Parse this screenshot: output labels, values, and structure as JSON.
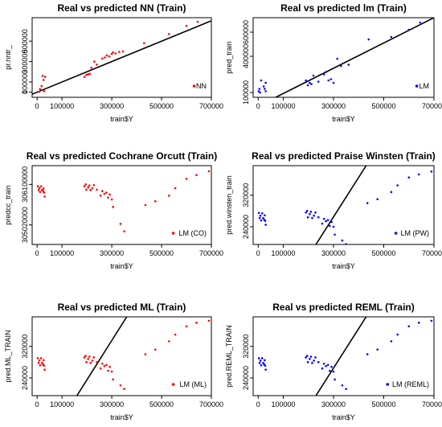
{
  "chart_data": [
    {
      "type": "scatter",
      "title": "Real vs predicted NN (Train)",
      "xlabel": "train$Y",
      "ylabel": "pr.nntr_",
      "xlim": [
        -20000,
        700000
      ],
      "ylim": [
        -50000,
        730000
      ],
      "xticks": [
        0,
        100000,
        300000,
        500000,
        700000
      ],
      "xtick_labels": [
        "0",
        "100000",
        "300000",
        "500000",
        "700000"
      ],
      "yticks": [
        0,
        100000,
        300000,
        500000
      ],
      "ytick_labels": [
        "0",
        "100000",
        "300000",
        "500000"
      ],
      "series": [
        {
          "name": "NN",
          "color": "#ff0000",
          "x": [
            8000,
            12000,
            18000,
            22000,
            26000,
            28000,
            32000,
            190000,
            198000,
            205000,
            212000,
            218000,
            230000,
            240000,
            262000,
            272000,
            280000,
            290000,
            300000,
            305000,
            315000,
            330000,
            345000,
            430000,
            530000,
            600000,
            645000
          ],
          "y": [
            5000,
            30000,
            60000,
            160000,
            120000,
            10000,
            150000,
            150000,
            170000,
            175000,
            180000,
            240000,
            300000,
            270000,
            330000,
            340000,
            360000,
            350000,
            375000,
            390000,
            380000,
            395000,
            400000,
            480000,
            570000,
            650000,
            690000
          ]
        }
      ],
      "line": {
        "x": [
          -20000,
          700000
        ],
        "y": [
          -20000,
          700000
        ]
      }
    },
    {
      "type": "scatter",
      "title": "Real vs predicted lm (Train)",
      "xlabel": "train$Y",
      "ylabel": "pred_train",
      "xlim": [
        -20000,
        700000
      ],
      "ylim": [
        60000,
        720000
      ],
      "xticks": [
        0,
        100000,
        300000,
        500000,
        700000
      ],
      "xtick_labels": [
        "0",
        "100000",
        "300000",
        "500000",
        "700000"
      ],
      "yticks": [
        100000,
        400000,
        600000
      ],
      "ytick_labels": [
        "100000",
        "400000",
        "600000"
      ],
      "series": [
        {
          "name": "LM",
          "color": "#0000ff",
          "x": [
            2000,
            5000,
            8000,
            12000,
            22000,
            26000,
            30000,
            30000,
            190000,
            198000,
            205000,
            212000,
            220000,
            240000,
            262000,
            270000,
            280000,
            290000,
            300000,
            315000,
            330000,
            360000,
            440000,
            530000,
            600000,
            645000
          ],
          "y": [
            110000,
            130000,
            100000,
            200000,
            150000,
            130000,
            110000,
            180000,
            200000,
            160000,
            180000,
            170000,
            240000,
            190000,
            250000,
            270000,
            200000,
            210000,
            180000,
            380000,
            320000,
            330000,
            540000,
            560000,
            620000,
            680000
          ]
        }
      ],
      "line": {
        "x": [
          70000,
          700000
        ],
        "y": [
          60000,
          720000
        ]
      }
    },
    {
      "type": "scatter",
      "title": "Real vs predicted Cochrane Orcutt (Train)",
      "xlabel": "train$Y",
      "ylabel": "predcc_train",
      "xlim": [
        -20000,
        700000
      ],
      "ylim": [
        304500000,
        306600000
      ],
      "xticks": [
        0,
        100000,
        300000,
        500000,
        700000
      ],
      "xtick_labels": [
        "0",
        "100000",
        "300000",
        "500000",
        "700000"
      ],
      "yticks": [
        305020000,
        306100000
      ],
      "ytick_labels": [
        "305020000",
        "306100000"
      ],
      "series": [
        {
          "name": "LM (CO)",
          "color": "#ff0000",
          "x": [
            3000,
            6000,
            9000,
            12000,
            16000,
            20000,
            24000,
            26000,
            28000,
            30000,
            190000,
            195000,
            198000,
            205000,
            210000,
            215000,
            222000,
            228000,
            240000,
            255000,
            262000,
            270000,
            278000,
            285000,
            292000,
            300000,
            305000,
            335000,
            350000,
            435000,
            475000,
            530000,
            555000,
            600000,
            640000,
            690000
          ],
          "y": [
            306050000,
            305950000,
            306000000,
            305900000,
            306050000,
            305950000,
            305920000,
            305990000,
            305880000,
            305780000,
            306050000,
            306100000,
            305960000,
            306020000,
            306070000,
            305950000,
            306000000,
            306080000,
            305960000,
            305800000,
            305920000,
            305850000,
            305880000,
            305750000,
            305830000,
            305700000,
            305500000,
            305050000,
            304850000,
            305550000,
            305650000,
            305800000,
            306000000,
            306250000,
            306350000,
            306450000
          ]
        }
      ]
    },
    {
      "type": "scatter",
      "title": "Real vs predicted Praise Winsten (Train)",
      "xlabel": "train$Y",
      "ylabel": "pred.winsten_train",
      "xlim": [
        -20000,
        700000
      ],
      "ylim": [
        195000,
        395000
      ],
      "xticks": [
        0,
        100000,
        300000,
        500000,
        700000
      ],
      "xtick_labels": [
        "0",
        "100000",
        "300000",
        "500000",
        "700000"
      ],
      "yticks": [
        240000,
        320000
      ],
      "ytick_labels": [
        "240000",
        "320000"
      ],
      "series": [
        {
          "name": "LM (PW)",
          "color": "#0000ff",
          "x": [
            3000,
            6000,
            9000,
            12000,
            16000,
            20000,
            24000,
            26000,
            28000,
            30000,
            190000,
            195000,
            198000,
            205000,
            210000,
            215000,
            222000,
            228000,
            240000,
            255000,
            262000,
            270000,
            278000,
            285000,
            292000,
            300000,
            305000,
            335000,
            350000,
            435000,
            475000,
            530000,
            555000,
            600000,
            640000,
            690000
          ],
          "y": [
            275000,
            262000,
            268000,
            256000,
            274000,
            262000,
            258000,
            269000,
            255000,
            245000,
            276000,
            280000,
            264000,
            272000,
            278000,
            262000,
            268000,
            276000,
            264000,
            248000,
            260000,
            254000,
            257000,
            242000,
            252000,
            240000,
            220000,
            205000,
            196000,
            300000,
            310000,
            328000,
            345000,
            365000,
            373000,
            380000
          ]
        }
      ],
      "line": {
        "x": [
          230000,
          430000
        ],
        "y": [
          195000,
          395000
        ]
      }
    },
    {
      "type": "scatter",
      "title": "Real vs predicted ML (Train)",
      "xlabel": "train$Y",
      "ylabel": "pred.ML_TRAIN",
      "xlim": [
        -20000,
        700000
      ],
      "ylim": [
        195000,
        395000
      ],
      "xticks": [
        0,
        100000,
        300000,
        500000,
        700000
      ],
      "xtick_labels": [
        "0",
        "100000",
        "300000",
        "500000",
        "700000"
      ],
      "yticks": [
        240000,
        320000
      ],
      "ytick_labels": [
        "240000",
        "320000"
      ],
      "series": [
        {
          "name": "LM (ML)",
          "color": "#ff0000",
          "x": [
            3000,
            6000,
            9000,
            12000,
            16000,
            20000,
            24000,
            26000,
            28000,
            30000,
            190000,
            195000,
            198000,
            205000,
            210000,
            215000,
            222000,
            228000,
            240000,
            255000,
            262000,
            270000,
            278000,
            285000,
            292000,
            300000,
            305000,
            335000,
            350000,
            435000,
            475000,
            530000,
            555000,
            600000,
            640000,
            690000
          ],
          "y": [
            290000,
            278000,
            284000,
            272000,
            290000,
            278000,
            274000,
            285000,
            271000,
            261000,
            292000,
            296000,
            280000,
            288000,
            294000,
            278000,
            284000,
            292000,
            280000,
            264000,
            276000,
            270000,
            273000,
            258000,
            268000,
            256000,
            236000,
            221000,
            212000,
            300000,
            312000,
            333000,
            350000,
            371000,
            380000,
            385000
          ]
        }
      ],
      "line": {
        "x": [
          160000,
          360000
        ],
        "y": [
          195000,
          395000
        ]
      }
    },
    {
      "type": "scatter",
      "title": "Real vs predicted REML (Train)",
      "xlabel": "train$Y",
      "ylabel": "pred.REML_TRAIN",
      "xlim": [
        -20000,
        700000
      ],
      "ylim": [
        195000,
        395000
      ],
      "xticks": [
        0,
        100000,
        300000,
        500000,
        700000
      ],
      "xtick_labels": [
        "0",
        "100000",
        "300000",
        "500000",
        "700000"
      ],
      "yticks": [
        240000,
        320000
      ],
      "ytick_labels": [
        "240000",
        "320000"
      ],
      "series": [
        {
          "name": "LM (REML)",
          "color": "#0000ff",
          "x": [
            3000,
            6000,
            9000,
            12000,
            16000,
            20000,
            24000,
            26000,
            28000,
            30000,
            190000,
            195000,
            198000,
            205000,
            210000,
            215000,
            222000,
            228000,
            240000,
            255000,
            262000,
            270000,
            278000,
            285000,
            292000,
            300000,
            305000,
            335000,
            350000,
            435000,
            475000,
            530000,
            555000,
            600000,
            640000,
            690000
          ],
          "y": [
            290000,
            278000,
            284000,
            272000,
            290000,
            278000,
            274000,
            285000,
            271000,
            261000,
            292000,
            296000,
            280000,
            288000,
            294000,
            278000,
            284000,
            292000,
            280000,
            264000,
            276000,
            270000,
            273000,
            258000,
            268000,
            256000,
            236000,
            221000,
            212000,
            300000,
            312000,
            333000,
            350000,
            371000,
            380000,
            385000
          ]
        }
      ],
      "line": {
        "x": [
          230000,
          430000
        ],
        "y": [
          195000,
          395000
        ]
      }
    }
  ]
}
